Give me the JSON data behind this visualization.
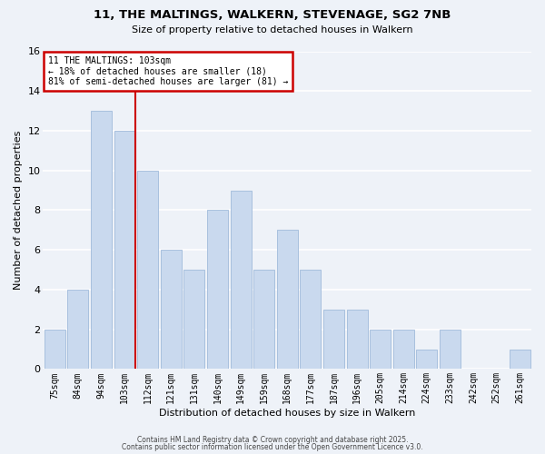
{
  "title": "11, THE MALTINGS, WALKERN, STEVENAGE, SG2 7NB",
  "subtitle": "Size of property relative to detached houses in Walkern",
  "xlabel": "Distribution of detached houses by size in Walkern",
  "ylabel": "Number of detached properties",
  "bar_color": "#c9d9ee",
  "bar_edge_color": "#a8c0de",
  "background_color": "#eef2f8",
  "grid_color": "#ffffff",
  "categories": [
    "75sqm",
    "84sqm",
    "94sqm",
    "103sqm",
    "112sqm",
    "121sqm",
    "131sqm",
    "140sqm",
    "149sqm",
    "159sqm",
    "168sqm",
    "177sqm",
    "187sqm",
    "196sqm",
    "205sqm",
    "214sqm",
    "224sqm",
    "233sqm",
    "242sqm",
    "252sqm",
    "261sqm"
  ],
  "values": [
    2,
    4,
    13,
    12,
    10,
    6,
    5,
    8,
    9,
    5,
    7,
    5,
    3,
    3,
    2,
    2,
    1,
    2,
    0,
    0,
    1
  ],
  "ylim": [
    0,
    16
  ],
  "yticks": [
    0,
    2,
    4,
    6,
    8,
    10,
    12,
    14,
    16
  ],
  "reference_line_index": 3,
  "reference_line_label": "11 THE MALTINGS: 103sqm",
  "annotation_line1": "← 18% of detached houses are smaller (18)",
  "annotation_line2": "81% of semi-detached houses are larger (81) →",
  "annotation_box_color": "#ffffff",
  "annotation_box_edge_color": "#cc0000",
  "ref_line_color": "#cc0000",
  "footer1": "Contains HM Land Registry data © Crown copyright and database right 2025.",
  "footer2": "Contains public sector information licensed under the Open Government Licence v3.0."
}
